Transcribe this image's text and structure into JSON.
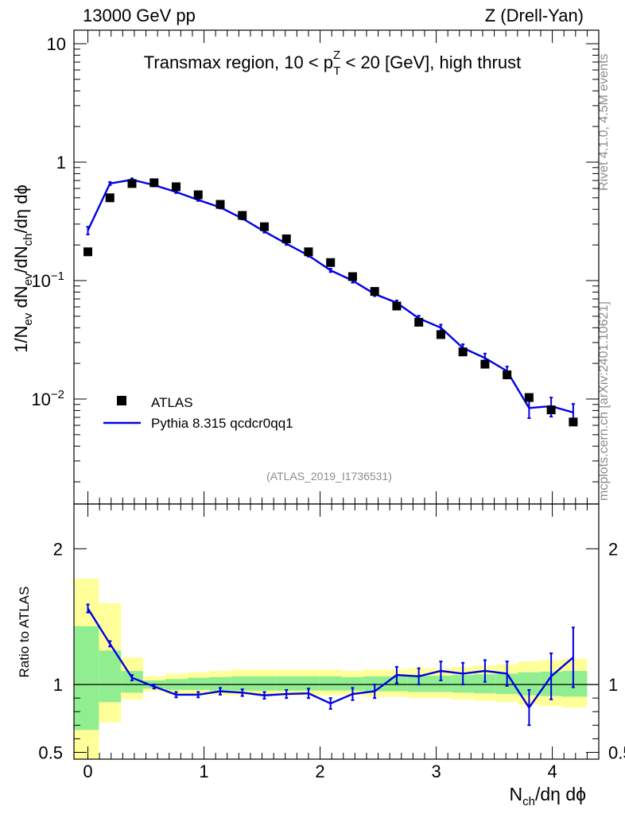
{
  "header": {
    "left": "13000 GeV pp",
    "right": "Z (Drell-Yan)"
  },
  "side": {
    "rivet": "Rivet 4.1.0,  4.5M events",
    "mcplots": "mcplots.cern.ch [arXiv:2401.10621]"
  },
  "colors": {
    "mc": "#0000e6",
    "band_inner": "#90ee90",
    "band_outer": "#ffff99",
    "data": "#000000"
  },
  "chart_data": [
    {
      "type": "scatter",
      "title": "Transmax region, 10 < p_T^Z < 20 [GeV], high thrust",
      "title_parts": {
        "pre": "Transmax region, 10 < p",
        "sub": "T",
        "sup": "Z",
        "post": " < 20 [GeV], high thrust"
      },
      "ylabel": "1/N_ev dN_ev/dN_ch/dη dϕ",
      "yscale": "log",
      "ylim": [
        0.0013,
        13
      ],
      "xlim": [
        -0.12,
        4.4
      ],
      "yticks": [
        {
          "v": 10,
          "label": "10"
        },
        {
          "v": 1,
          "label": "1"
        },
        {
          "v": 0.1,
          "base": "10",
          "exp": "−1"
        },
        {
          "v": 0.01,
          "base": "10",
          "exp": "−2"
        }
      ],
      "legend": [
        {
          "name": "ATLAS",
          "marker": "square"
        },
        {
          "name": "Pythia 8.315 qcdcr0qq1",
          "marker": "line"
        }
      ],
      "watermark": "(ATLAS_2019_I1736531)",
      "x": [
        0.0,
        0.19,
        0.38,
        0.57,
        0.76,
        0.95,
        1.14,
        1.33,
        1.52,
        1.71,
        1.9,
        2.09,
        2.28,
        2.47,
        2.66,
        2.85,
        3.04,
        3.23,
        3.42,
        3.61,
        3.8,
        3.99,
        4.18
      ],
      "series": [
        {
          "name": "ATLAS",
          "values": [
            0.175,
            0.5,
            0.66,
            0.67,
            0.62,
            0.53,
            0.44,
            0.355,
            0.285,
            0.225,
            0.175,
            0.142,
            0.108,
            0.081,
            0.061,
            0.0445,
            0.035,
            0.025,
            0.0197,
            0.016,
            0.0103,
            0.0081,
            0.0064
          ]
        },
        {
          "name": "Pythia 8.315 qcdcr0qq1",
          "values": [
            0.265,
            0.66,
            0.71,
            0.64,
            0.56,
            0.48,
            0.415,
            0.335,
            0.26,
            0.205,
            0.163,
            0.122,
            0.1,
            0.077,
            0.065,
            0.048,
            0.04,
            0.027,
            0.0222,
            0.0172,
            0.0084,
            0.0087,
            0.0077
          ],
          "errors": [
            0.02,
            0.02,
            0.02,
            0.015,
            0.012,
            0.01,
            0.009,
            0.007,
            0.006,
            0.005,
            0.004,
            0.004,
            0.004,
            0.003,
            0.003,
            0.0025,
            0.0025,
            0.002,
            0.002,
            0.0016,
            0.0015,
            0.0016,
            0.0014
          ]
        }
      ]
    },
    {
      "type": "line",
      "ylabel": "Ratio to ATLAS",
      "xlabel": "N_ch/dη dϕ",
      "xlabel_parts": {
        "pre": "N",
        "sub": "ch",
        "post": "/dη dϕ"
      },
      "xlim": [
        -0.12,
        4.4
      ],
      "ylim": [
        0.45,
        2.33
      ],
      "xticks": [
        0,
        1,
        2,
        3,
        4
      ],
      "yticks": [
        {
          "v": 2,
          "label": "2"
        },
        {
          "v": 1,
          "label": "1"
        },
        {
          "v": 0.5,
          "label": "0.5"
        }
      ],
      "reference": 1,
      "bands": [
        {
          "x0": -0.12,
          "x1": 0.095,
          "inner": [
            0.665,
            1.43
          ],
          "outer": [
            0.3,
            1.78
          ]
        },
        {
          "x0": 0.095,
          "x1": 0.285,
          "inner": [
            0.87,
            1.25
          ],
          "outer": [
            0.72,
            1.6
          ]
        },
        {
          "x0": 0.285,
          "x1": 0.475,
          "inner": [
            0.94,
            1.1
          ],
          "outer": [
            0.89,
            1.2
          ]
        },
        {
          "x0": 0.475,
          "x1": 0.665,
          "inner": [
            0.97,
            1.03
          ],
          "outer": [
            0.95,
            1.06
          ]
        },
        {
          "x0": 0.665,
          "x1": 0.855,
          "inner": [
            0.96,
            1.04
          ],
          "outer": [
            0.93,
            1.08
          ]
        },
        {
          "x0": 0.855,
          "x1": 1.045,
          "inner": [
            0.96,
            1.05
          ],
          "outer": [
            0.93,
            1.09
          ]
        },
        {
          "x0": 1.045,
          "x1": 1.235,
          "inner": [
            0.955,
            1.055
          ],
          "outer": [
            0.92,
            1.1
          ]
        },
        {
          "x0": 1.235,
          "x1": 1.425,
          "inner": [
            0.955,
            1.06
          ],
          "outer": [
            0.92,
            1.11
          ]
        },
        {
          "x0": 1.425,
          "x1": 1.615,
          "inner": [
            0.955,
            1.06
          ],
          "outer": [
            0.92,
            1.11
          ]
        },
        {
          "x0": 1.615,
          "x1": 1.805,
          "inner": [
            0.955,
            1.06
          ],
          "outer": [
            0.92,
            1.11
          ]
        },
        {
          "x0": 1.805,
          "x1": 1.995,
          "inner": [
            0.955,
            1.06
          ],
          "outer": [
            0.92,
            1.11
          ]
        },
        {
          "x0": 1.995,
          "x1": 2.185,
          "inner": [
            0.955,
            1.06
          ],
          "outer": [
            0.92,
            1.11
          ]
        },
        {
          "x0": 2.185,
          "x1": 2.375,
          "inner": [
            0.955,
            1.055
          ],
          "outer": [
            0.92,
            1.1
          ]
        },
        {
          "x0": 2.375,
          "x1": 2.565,
          "inner": [
            0.95,
            1.06
          ],
          "outer": [
            0.91,
            1.11
          ]
        },
        {
          "x0": 2.565,
          "x1": 2.755,
          "inner": [
            0.95,
            1.06
          ],
          "outer": [
            0.91,
            1.11
          ]
        },
        {
          "x0": 2.755,
          "x1": 2.945,
          "inner": [
            0.945,
            1.065
          ],
          "outer": [
            0.9,
            1.12
          ]
        },
        {
          "x0": 2.945,
          "x1": 3.135,
          "inner": [
            0.945,
            1.065
          ],
          "outer": [
            0.9,
            1.12
          ]
        },
        {
          "x0": 3.135,
          "x1": 3.325,
          "inner": [
            0.94,
            1.07
          ],
          "outer": [
            0.89,
            1.13
          ]
        },
        {
          "x0": 3.325,
          "x1": 3.515,
          "inner": [
            0.935,
            1.075
          ],
          "outer": [
            0.88,
            1.14
          ]
        },
        {
          "x0": 3.515,
          "x1": 3.705,
          "inner": [
            0.93,
            1.08
          ],
          "outer": [
            0.87,
            1.15
          ]
        },
        {
          "x0": 3.705,
          "x1": 3.895,
          "inner": [
            0.92,
            1.09
          ],
          "outer": [
            0.85,
            1.17
          ]
        },
        {
          "x0": 3.895,
          "x1": 4.085,
          "inner": [
            0.915,
            1.095
          ],
          "outer": [
            0.84,
            1.18
          ]
        },
        {
          "x0": 4.085,
          "x1": 4.3,
          "inner": [
            0.91,
            1.1
          ],
          "outer": [
            0.83,
            1.19
          ]
        }
      ],
      "x": [
        0.0,
        0.19,
        0.38,
        0.57,
        0.76,
        0.95,
        1.14,
        1.33,
        1.52,
        1.71,
        1.9,
        2.09,
        2.28,
        2.47,
        2.66,
        2.85,
        3.04,
        3.23,
        3.42,
        3.61,
        3.8,
        3.99,
        4.18
      ],
      "series": [
        {
          "name": "Pythia 8.315 qcdcr0qq1 / ATLAS",
          "values": [
            1.56,
            1.3,
            1.05,
            0.985,
            0.925,
            0.925,
            0.95,
            0.94,
            0.92,
            0.93,
            0.935,
            0.86,
            0.93,
            0.95,
            1.07,
            1.06,
            1.1,
            1.08,
            1.1,
            1.08,
            0.83,
            1.06,
            1.2
          ],
          "errors": [
            0.03,
            0.02,
            0.02,
            0.015,
            0.02,
            0.02,
            0.025,
            0.025,
            0.025,
            0.03,
            0.035,
            0.04,
            0.045,
            0.05,
            0.06,
            0.06,
            0.07,
            0.08,
            0.08,
            0.09,
            0.13,
            0.17,
            0.22
          ]
        }
      ]
    }
  ]
}
